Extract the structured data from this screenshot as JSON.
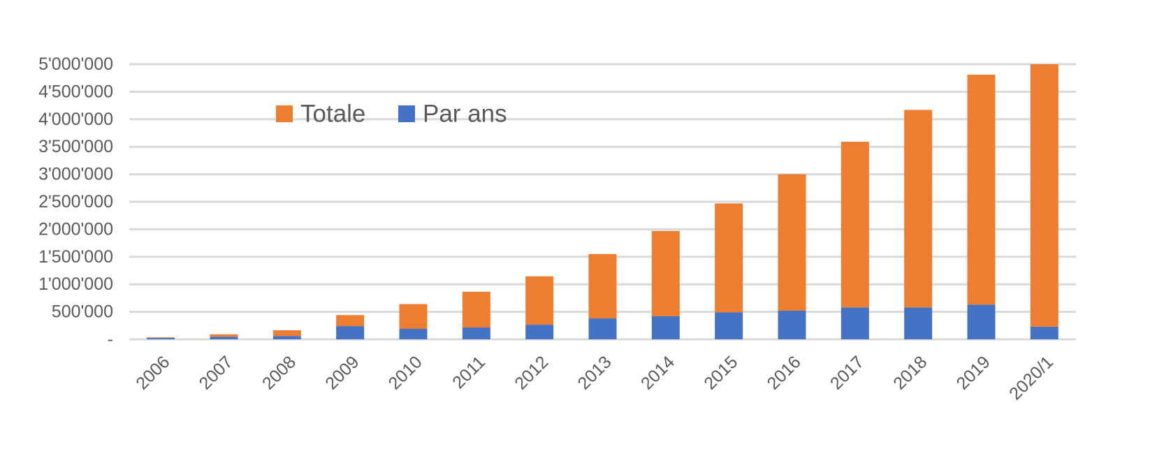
{
  "chart_data": {
    "type": "bar",
    "stacked": true,
    "categories": [
      "2006",
      "2007",
      "2008",
      "2009",
      "2010",
      "2011",
      "2012",
      "2013",
      "2014",
      "2015",
      "2016",
      "2017",
      "2018",
      "2019",
      "2020/1"
    ],
    "series": [
      {
        "name": "Par ans",
        "color": "#4472C4",
        "values": [
          25000,
          45000,
          60000,
          240000,
          190000,
          215000,
          265000,
          380000,
          420000,
          490000,
          520000,
          580000,
          580000,
          630000,
          230000
        ]
      },
      {
        "name": "Totale",
        "color": "#ED7D31",
        "values": [
          10000,
          45000,
          105000,
          200000,
          450000,
          650000,
          880000,
          1170000,
          1550000,
          1980000,
          2480000,
          3010000,
          3590000,
          4180000,
          4770000
        ]
      }
    ],
    "yticks": [
      "-",
      "500'000",
      "1'000'000",
      "1'500'000",
      "2'000'000",
      "2'500'000",
      "3'000'000",
      "3'500'000",
      "4'000'000",
      "4'500'000",
      "5'000'000"
    ],
    "ylim": [
      0,
      5000000
    ],
    "grid": true,
    "legend_position": "top-left",
    "title": "",
    "xlabel": "",
    "ylabel": ""
  }
}
